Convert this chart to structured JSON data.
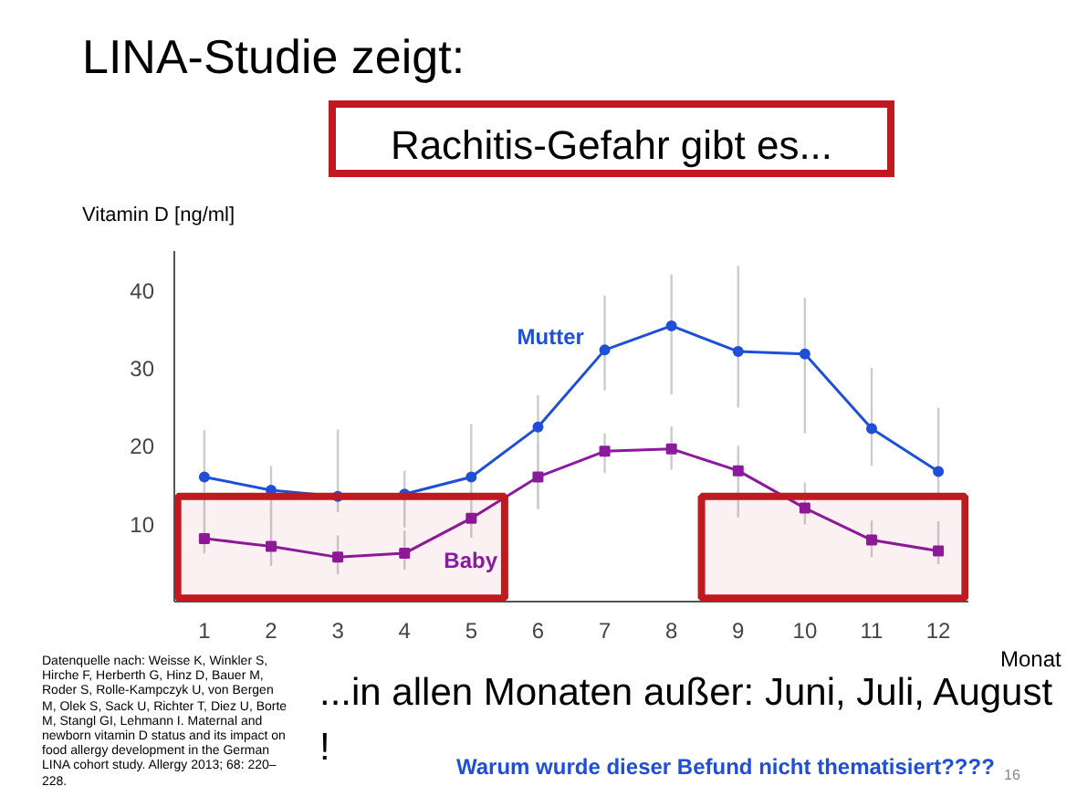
{
  "chart_data": {
    "type": "line",
    "title": "LINA-Studie zeigt:",
    "subtitle": "Rachitis-Gefahr gibt es...",
    "ylabel": "Vitamin D [ng/ml]",
    "xlabel": "Monat",
    "x": [
      1,
      2,
      3,
      4,
      5,
      6,
      7,
      8,
      9,
      10,
      11,
      12
    ],
    "xlim": [
      0.55,
      12.45
    ],
    "xticks": [
      1,
      2,
      3,
      4,
      5,
      6,
      7,
      8,
      9,
      10,
      11,
      12
    ],
    "ylim": [
      0,
      45
    ],
    "yticks": [
      10,
      20,
      30,
      40
    ],
    "grid": false,
    "series": [
      {
        "name": "Mutter",
        "color": "#1f4fd8",
        "marker": "circle",
        "values": [
          16.0,
          14.3,
          13.5,
          13.8,
          16.0,
          22.4,
          32.3,
          35.4,
          32.1,
          31.8,
          22.2,
          16.7
        ],
        "errors": [
          [
            14,
            22
          ],
          [
            10.4,
            17.4
          ],
          [
            11.5,
            22.1
          ],
          [
            9.5,
            16.8
          ],
          [
            14.3,
            22.8
          ],
          [
            11.9,
            26.5
          ],
          [
            27.1,
            39.3
          ],
          [
            26.6,
            42.0
          ],
          [
            24.9,
            43.1
          ],
          [
            21.6,
            39.0
          ],
          [
            17.4,
            30.0
          ],
          [
            13.2,
            24.9
          ]
        ]
      },
      {
        "name": "Baby",
        "color": "#8b1a9e",
        "marker": "square",
        "values": [
          8.1,
          7.1,
          5.7,
          6.2,
          10.7,
          16.0,
          19.3,
          19.6,
          16.8,
          12.0,
          7.9,
          6.5
        ],
        "errors": [
          [
            6.2,
            13.9
          ],
          [
            4.6,
            12.1
          ],
          [
            3.5,
            8.5
          ],
          [
            4.1,
            9.1
          ],
          [
            8.2,
            14.3
          ],
          [
            11.9,
            20.3
          ],
          [
            16.5,
            21.6
          ],
          [
            16.9,
            22.5
          ],
          [
            10.8,
            20.0
          ],
          [
            9.9,
            15.3
          ],
          [
            5.7,
            10.4
          ],
          [
            4.8,
            10.3
          ]
        ]
      }
    ],
    "bands": [
      {
        "axis": "x",
        "from": 0.6,
        "to": 5.5,
        "color": "#c0191f"
      },
      {
        "axis": "x",
        "from": 8.45,
        "to": 12.4,
        "color": "#c0191f"
      }
    ],
    "annotations": [
      "...in allen Monaten außer: Juni, Juli, August !",
      "Warum wurde dieser Befund nicht thematisiert????",
      "Datenquelle nach: Weisse K, Winkler S, Hirche F, Herberth G, Hinz D, Bauer M, Roder S, Rolle-Kampczyk U, von Bergen M, Olek S, Sack U, Richter T, Diez U, Borte M, Stangl GI, Lehmann I. Maternal and newborn vitamin D status and its impact on food allergy development in the German LINA cohort study. Allergy 2013; 68: 220–228.",
      "16"
    ]
  }
}
